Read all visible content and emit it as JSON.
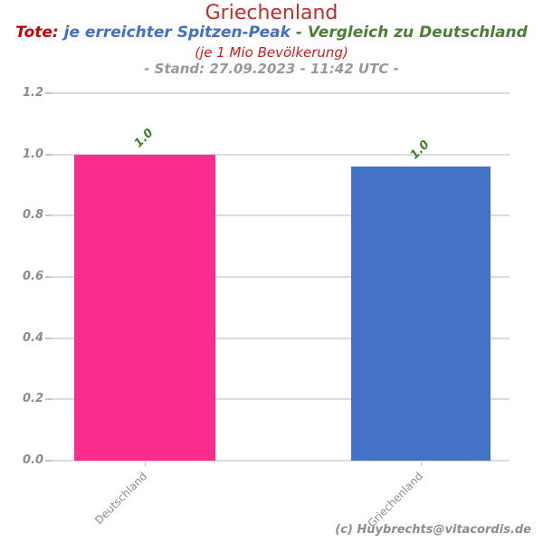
{
  "header": {
    "title": "Griechenland",
    "subtitle_parts": [
      {
        "text": "Tote:",
        "color": "#cc0000"
      },
      {
        "text": " je erreichter Spitzen-Peak",
        "color": "#3f6fc9"
      },
      {
        "text": " - ",
        "color": "#4d7e33"
      },
      {
        "text": "Vergleich zu Deutschland",
        "color": "#4d7e33"
      }
    ],
    "subtitle_population": "(je 1 Mio Bevölkerung)",
    "subtitle_timestamp": "- Stand: 27.09.2023 - 11:42 UTC -"
  },
  "chart_data": {
    "type": "bar",
    "title": "Griechenland",
    "categories": [
      "Deutschland",
      "Griechenland"
    ],
    "values": [
      1.0,
      0.96
    ],
    "bar_labels": [
      "1.0",
      "1.0"
    ],
    "bar_colors": [
      "#fa2d8c",
      "#4472c4"
    ],
    "bar_label_color": "#3e7d26",
    "axis_text_color": "#8c8c8c",
    "grid_color": "#dcdcdc",
    "xlabel": "",
    "ylabel": "",
    "ylim": [
      0,
      1.2
    ],
    "yticks": [
      "0.0",
      "0.2",
      "0.4",
      "0.6",
      "0.8",
      "1.0",
      "1.2"
    ],
    "grid": true,
    "legend": "none"
  },
  "footer": {
    "copyright": "(c) Huybrechts@vitacordis.de"
  }
}
